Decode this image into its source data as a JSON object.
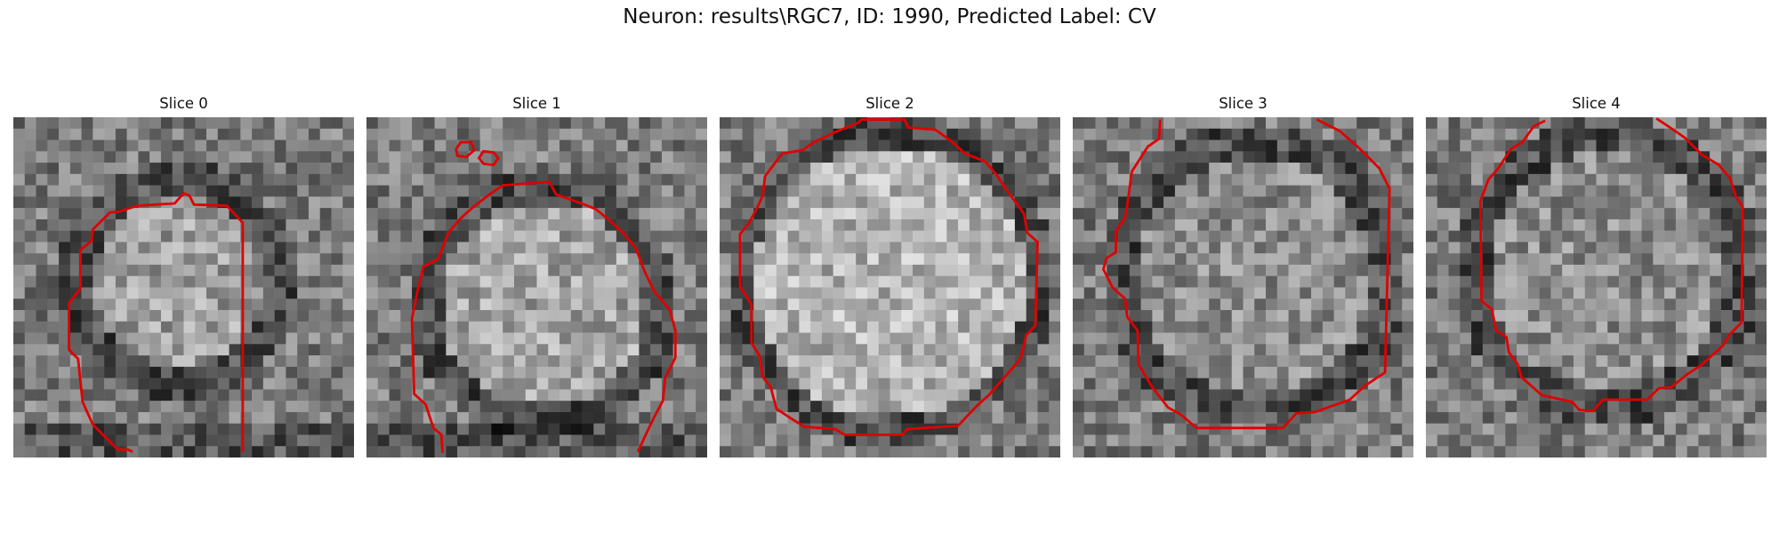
{
  "figure": {
    "title": "Neuron: results\\RGC7, ID: 1990, Predicted Label: CV",
    "contour_color": "#e00000"
  },
  "panels": [
    {
      "title": "Slice 0"
    },
    {
      "title": "Slice 1"
    },
    {
      "title": "Slice 2"
    },
    {
      "title": "Slice 3"
    },
    {
      "title": "Slice 4"
    }
  ]
}
